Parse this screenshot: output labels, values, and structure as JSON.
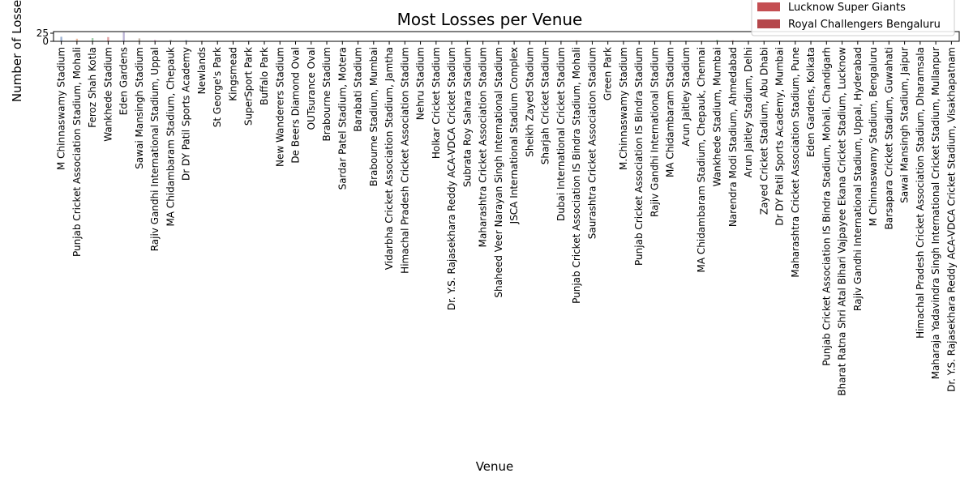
{
  "chart_data": {
    "type": "bar",
    "title": "Most Losses per Venue",
    "xlabel": "Venue",
    "ylabel": "Number of Losses",
    "yticks": [
      "0",
      "25"
    ],
    "ylim": [
      0,
      30
    ],
    "legend_position": "top-right",
    "legend_visible_entries": [
      {
        "name": "Lucknow Super Giants",
        "color": "#c44e52"
      },
      {
        "name": "Royal Challengers Bengaluru",
        "color": "#b5474b"
      }
    ],
    "categories": [
      "M Chinnaswamy Stadium",
      "Punjab Cricket Association Stadium, Mohali",
      "Feroz Shah Kotla",
      "Wankhede Stadium",
      "Eden Gardens",
      "Sawai Mansingh Stadium",
      "Rajiv Gandhi International Stadium, Uppal",
      "MA Chidambaram Stadium, Chepauk",
      "Dr DY Patil Sports Academy",
      "Newlands",
      "St George's Park",
      "Kingsmead",
      "SuperSport Park",
      "Buffalo Park",
      "New Wanderers Stadium",
      "De Beers Diamond Oval",
      "OUTsurance Oval",
      "Brabourne Stadium",
      "Sardar Patel Stadium, Motera",
      "Barabati Stadium",
      "Brabourne Stadium, Mumbai",
      "Vidarbha Cricket Association Stadium, Jamtha",
      "Himachal Pradesh Cricket Association Stadium",
      "Nehru Stadium",
      "Holkar Cricket Stadium",
      "Dr. Y.S. Rajasekhara Reddy ACA-VDCA Cricket Stadium",
      "Subrata Roy Sahara Stadium",
      "Maharashtra Cricket Association Stadium",
      "Shaheed Veer Narayan Singh International Stadium",
      "JSCA International Stadium Complex",
      "Sheikh Zayed Stadium",
      "Sharjah Cricket Stadium",
      "Dubai International Cricket Stadium",
      "Punjab Cricket Association IS Bindra Stadium, Mohali",
      "Saurashtra Cricket Association Stadium",
      "Green Park",
      "M.Chinnaswamy Stadium",
      "Punjab Cricket Association IS Bindra Stadium",
      "Rajiv Gandhi International Stadium",
      "MA Chidambaram Stadium",
      "Arun Jaitley Stadium",
      "MA Chidambaram Stadium, Chepauk, Chennai",
      "Wankhede Stadium, Mumbai",
      "Narendra Modi Stadium, Ahmedabad",
      "Arun Jaitley Stadium, Delhi",
      "Zayed Cricket Stadium, Abu Dhabi",
      "Dr DY Patil Sports Academy, Mumbai",
      "Maharashtra Cricket Association Stadium, Pune",
      "Eden Gardens, Kolkata",
      "Punjab Cricket Association IS Bindra Stadium, Mohali, Chandigarh",
      "Bharat Ratna Shri Atal Bihari Vajpayee Ekana Cricket Stadium, Lucknow",
      "Rajiv Gandhi International Stadium, Uppal, Hyderabad",
      "M Chinnaswamy Stadium, Bengaluru",
      "Barsapara Cricket Stadium, Guwahati",
      "Sawai Mansingh Stadium, Jaipur",
      "Himachal Pradesh Cricket Association Stadium, Dharamsala",
      "Maharaja Yadavindra Singh International Cricket Stadium, Mullanpur",
      "Dr. Y.S. Rajasekhara Reddy ACA-VDCA Cricket Stadium, Visakhapatnam"
    ],
    "max_losses": [
      14,
      8,
      10,
      13,
      28,
      9,
      5,
      5,
      4,
      2,
      2,
      2,
      2,
      1,
      2,
      1,
      1,
      1,
      2,
      2,
      2,
      1,
      2,
      1,
      2,
      1,
      3,
      2,
      2,
      2,
      2,
      2,
      2,
      3,
      2,
      1,
      2,
      2,
      2,
      2,
      2,
      2,
      5,
      3,
      2,
      2,
      2,
      2,
      2,
      2,
      2,
      2,
      2,
      2,
      2,
      1,
      1,
      1
    ]
  }
}
